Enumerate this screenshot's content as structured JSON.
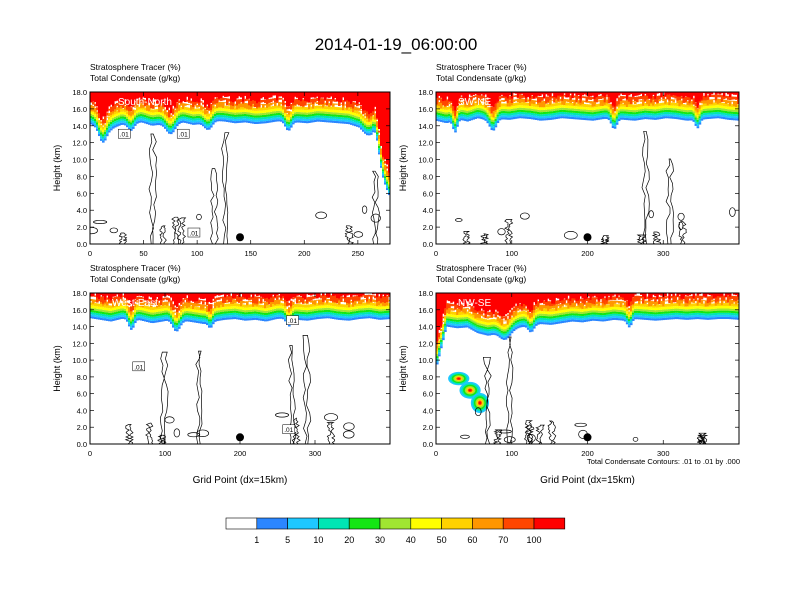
{
  "title": "2014-01-19_06:00:00",
  "footer_note": "Total Condensate Contours: .01 to .01 by .000",
  "colors": {
    "levels": [
      "#ffffff",
      "#2b86ff",
      "#1ec8ff",
      "#00e6b4",
      "#14e614",
      "#a0e632",
      "#ffff00",
      "#ffd200",
      "#ff9600",
      "#ff4600",
      "#ff0000"
    ]
  },
  "colorbar": {
    "labels": [
      "1",
      "5",
      "10",
      "20",
      "30",
      "40",
      "50",
      "60",
      "70",
      "100"
    ]
  },
  "chart_data": [
    {
      "type": "heatmap",
      "label": "South-North",
      "subtitle1": "Stratosphere Tracer   (%)",
      "subtitle2": "Total Condensate   (g/kg)",
      "ylabel": "Height (km)",
      "xlabel": "",
      "xlim": [
        0,
        280
      ],
      "ylim": [
        0,
        18
      ],
      "xticks": [
        "0",
        "50",
        "100",
        "150",
        "200",
        "250"
      ],
      "xtick_values": [
        0,
        50,
        100,
        150,
        200,
        250
      ],
      "yticks": [
        "0.0",
        "2.0",
        "4.0",
        "6.0",
        "8.0",
        "10.0",
        "12.0",
        "14.0",
        "16.0",
        "18.0"
      ],
      "base": [
        14.2,
        13.9,
        13.6,
        14.1,
        14.3,
        14.4,
        14.0,
        14.2,
        14.5,
        14.4,
        14.1,
        14.3,
        14.6,
        14.5,
        14.3,
        14.4,
        14.2,
        14.3,
        14.5,
        14.6,
        14.4,
        14.3,
        14.5,
        14.4,
        14.3,
        14.2,
        13.8,
        12.5,
        8.5,
        5.5
      ],
      "dips": [
        [
          12,
          12.0,
          5
        ],
        [
          38,
          13.4,
          4
        ],
        [
          75,
          13.0,
          6
        ],
        [
          110,
          13.5,
          5
        ],
        [
          185,
          13.4,
          4
        ],
        [
          265,
          13.3,
          5
        ]
      ],
      "plumes": [],
      "marker_x": 140,
      "contour_labels": [
        {
          "text": ".01",
          "x": 32,
          "y": 13.0
        },
        {
          "text": ".01",
          "x": 87,
          "y": 13.0
        },
        {
          "text": ".01",
          "x": 97,
          "y": 1.3
        }
      ]
    },
    {
      "type": "heatmap",
      "label": "SW-NE",
      "subtitle1": "Stratosphere Tracer   (%)",
      "subtitle2": "Total Condensate   (g/kg)",
      "ylabel": "Height (km)",
      "xlabel": "",
      "xlim": [
        0,
        400
      ],
      "ylim": [
        0,
        18
      ],
      "xticks": [
        "0",
        "100",
        "200",
        "300"
      ],
      "xtick_values": [
        0,
        100,
        200,
        300
      ],
      "yticks": [
        "0.0",
        "2.0",
        "4.0",
        "6.0",
        "8.0",
        "10.0",
        "12.0",
        "14.0",
        "16.0",
        "18.0"
      ],
      "base": [
        14.6,
        14.3,
        14.8,
        14.5,
        14.9,
        14.6,
        14.8,
        14.7,
        14.9,
        14.8,
        14.6,
        14.7,
        14.9,
        14.8,
        14.7,
        14.6,
        14.8,
        14.9,
        14.7,
        14.6,
        14.8,
        14.7,
        14.9,
        14.8,
        14.6,
        14.7,
        14.8,
        14.9,
        14.7,
        14.6
      ],
      "dips": [
        [
          25,
          13.2,
          4
        ],
        [
          75,
          13.4,
          6
        ],
        [
          235,
          13.6,
          5
        ],
        [
          345,
          13.7,
          4
        ]
      ],
      "plumes": [],
      "marker_x": 200,
      "contour_labels": []
    },
    {
      "type": "heatmap",
      "label": "West-East",
      "subtitle1": "Stratosphere Tracer   (%)",
      "subtitle2": "Total Condensate   (g/kg)",
      "ylabel": "Height (km)",
      "xlabel": "Grid Point (dx=15km)",
      "xlim": [
        0,
        400
      ],
      "ylim": [
        0,
        18
      ],
      "xticks": [
        "0",
        "100",
        "200",
        "300"
      ],
      "xtick_values": [
        0,
        100,
        200,
        300
      ],
      "yticks": [
        "0.0",
        "2.0",
        "4.0",
        "6.0",
        "8.0",
        "10.0",
        "12.0",
        "14.0",
        "16.0",
        "18.0"
      ],
      "base": [
        15.0,
        14.8,
        14.6,
        14.9,
        15.0,
        14.7,
        14.4,
        14.6,
        14.9,
        14.7,
        14.5,
        14.3,
        14.6,
        14.8,
        14.9,
        14.7,
        14.8,
        14.6,
        14.9,
        15.0,
        14.8,
        14.7,
        14.9,
        15.0,
        14.8,
        14.7,
        14.9,
        15.0,
        14.8,
        14.9
      ],
      "dips": [
        [
          55,
          13.6,
          5
        ],
        [
          115,
          13.4,
          7
        ],
        [
          160,
          13.8,
          4
        ],
        [
          265,
          14.0,
          5
        ]
      ],
      "plumes": [],
      "marker_x": 200,
      "contour_labels": [
        {
          "text": ".01",
          "x": 65,
          "y": 9.2
        },
        {
          "text": ".01",
          "x": 270,
          "y": 14.7
        },
        {
          "text": ".01",
          "x": 265,
          "y": 1.7
        }
      ]
    },
    {
      "type": "heatmap",
      "label": "NW-SE",
      "subtitle1": "Stratosphere Tracer   (%)",
      "subtitle2": "Total Condensate   (g/kg)",
      "ylabel": "Height (km)",
      "xlabel": "Grid Point (dx=15km)",
      "xlim": [
        0,
        400
      ],
      "ylim": [
        0,
        18
      ],
      "xticks": [
        "0",
        "100",
        "200",
        "300"
      ],
      "xtick_values": [
        0,
        100,
        200,
        300
      ],
      "yticks": [
        "0.0",
        "2.0",
        "4.0",
        "6.0",
        "8.0",
        "10.0",
        "12.0",
        "14.0",
        "16.0",
        "18.0"
      ],
      "base": [
        9.0,
        14.0,
        13.8,
        13.9,
        13.2,
        12.9,
        13.3,
        13.6,
        13.9,
        14.1,
        14.3,
        14.2,
        14.4,
        14.6,
        14.5,
        14.7,
        14.6,
        14.8,
        14.7,
        14.9,
        14.8,
        14.7,
        14.8,
        14.9,
        14.8,
        14.9,
        14.8,
        14.9,
        14.9,
        14.8
      ],
      "dips": [
        [
          90,
          12.4,
          10
        ],
        [
          125,
          13.3,
          5
        ],
        [
          255,
          13.9,
          4
        ]
      ],
      "plumes": [
        {
          "x": 30,
          "y": 7.8,
          "rx": 14,
          "ry": 0.8
        },
        {
          "x": 45,
          "y": 6.4,
          "rx": 14,
          "ry": 1.0
        },
        {
          "x": 58,
          "y": 4.9,
          "rx": 12,
          "ry": 1.2
        }
      ],
      "marker_x": 200,
      "contour_labels": []
    }
  ]
}
